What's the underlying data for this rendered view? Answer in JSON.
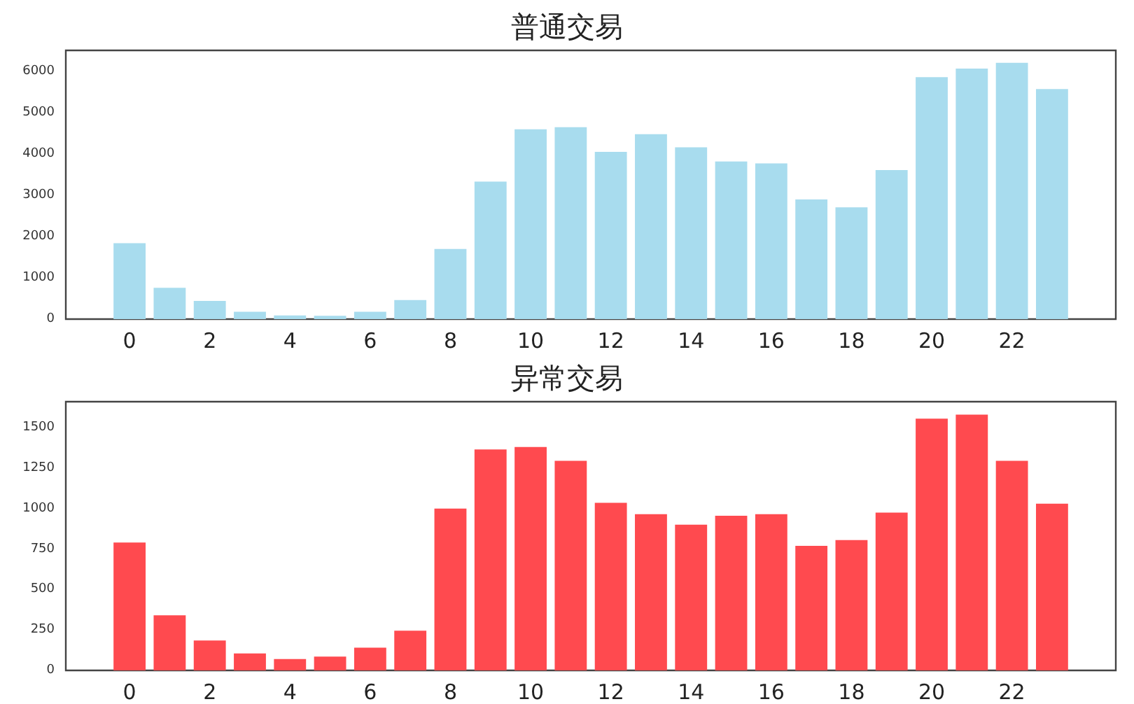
{
  "chart_data": [
    {
      "type": "bar",
      "title": "普通交易",
      "x": [
        0,
        1,
        2,
        3,
        4,
        5,
        6,
        7,
        8,
        9,
        10,
        11,
        12,
        13,
        14,
        15,
        16,
        17,
        18,
        19,
        20,
        21,
        22,
        23
      ],
      "values": [
        1840,
        760,
        440,
        180,
        90,
        80,
        180,
        460,
        1700,
        3330,
        4600,
        4650,
        4050,
        4480,
        4160,
        3820,
        3770,
        2900,
        2710,
        3610,
        5860,
        6070,
        6210,
        5575
      ],
      "color": "#a8dcee",
      "xlim": [
        -1.59,
        24.59
      ],
      "xticks": [
        0,
        2,
        4,
        6,
        8,
        10,
        12,
        14,
        16,
        18,
        20,
        22
      ],
      "ylim": [
        0,
        6510
      ],
      "yticks": [
        0,
        1000,
        2000,
        3000,
        4000,
        5000,
        6000
      ],
      "grid": false
    },
    {
      "type": "bar",
      "title": "异常交易",
      "x": [
        0,
        1,
        2,
        3,
        4,
        5,
        6,
        7,
        8,
        9,
        10,
        11,
        12,
        13,
        14,
        15,
        16,
        17,
        18,
        19,
        20,
        21,
        22,
        23
      ],
      "values": [
        790,
        340,
        185,
        105,
        70,
        85,
        140,
        245,
        1000,
        1365,
        1380,
        1295,
        1035,
        965,
        900,
        955,
        965,
        770,
        805,
        975,
        1555,
        1580,
        1295,
        1030
      ],
      "color": "#ff4a4f",
      "xlim": [
        -1.59,
        24.59
      ],
      "xticks": [
        0,
        2,
        4,
        6,
        8,
        10,
        12,
        14,
        16,
        18,
        20,
        22
      ],
      "ylim": [
        0,
        1660
      ],
      "yticks": [
        0,
        250,
        500,
        750,
        1000,
        1250,
        1500
      ],
      "grid": false
    }
  ]
}
